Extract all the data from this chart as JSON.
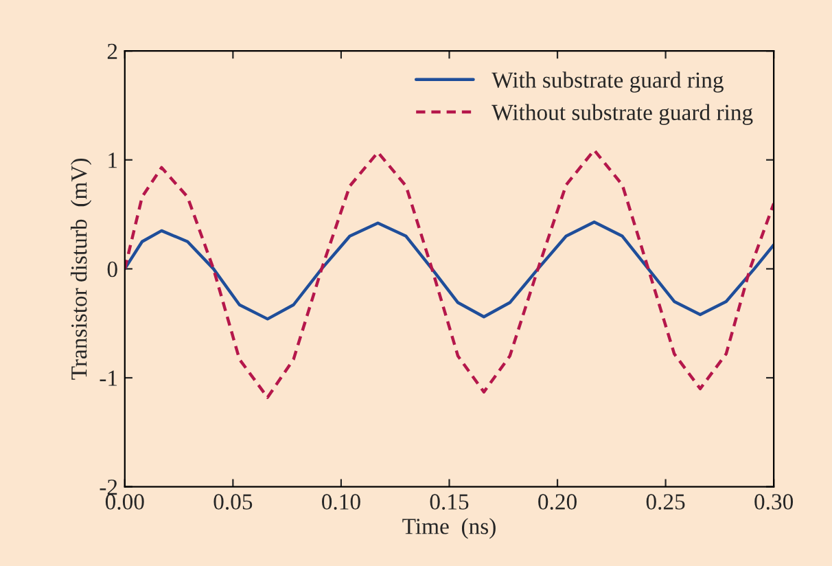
{
  "chart_data": {
    "type": "line",
    "xlabel": "Time  (ns)",
    "ylabel": "Transistor disturb  (mV)",
    "xlim": [
      0,
      0.3
    ],
    "ylim": [
      -2,
      2
    ],
    "xticks": [
      {
        "value": 0,
        "label": "0.00"
      },
      {
        "value": 0.05,
        "label": "0.05"
      },
      {
        "value": 0.1,
        "label": "0.10"
      },
      {
        "value": 0.15,
        "label": "0.15"
      },
      {
        "value": 0.2,
        "label": "0.20"
      },
      {
        "value": 0.25,
        "label": "0.25"
      },
      {
        "value": 0.3,
        "label": "0.30"
      }
    ],
    "yticks": [
      -2,
      -1,
      0,
      1,
      2
    ],
    "grid": false,
    "legend": "top right",
    "series": [
      {
        "name": "With substrate guard ring",
        "color": "#1f4e9a",
        "line_style": "solid",
        "x": [
          0,
          0.008,
          0.017,
          0.029,
          0.041,
          0.053,
          0.066,
          0.078,
          0.091,
          0.104,
          0.117,
          0.13,
          0.142,
          0.154,
          0.166,
          0.178,
          0.191,
          0.204,
          0.217,
          0.23,
          0.242,
          0.254,
          0.266,
          0.278,
          0.291,
          0.3
        ],
        "values": [
          0,
          0.25,
          0.35,
          0.25,
          0,
          -0.33,
          -0.46,
          -0.33,
          0,
          0.3,
          0.42,
          0.3,
          0,
          -0.31,
          -0.44,
          -0.31,
          0,
          0.3,
          0.43,
          0.3,
          0,
          -0.3,
          -0.42,
          -0.3,
          0,
          0.22
        ]
      },
      {
        "name": "Without substrate guard ring",
        "color": "#b5174b",
        "line_style": "dashed",
        "x": [
          0,
          0.008,
          0.017,
          0.029,
          0.041,
          0.053,
          0.066,
          0.078,
          0.091,
          0.104,
          0.117,
          0.13,
          0.142,
          0.154,
          0.166,
          0.178,
          0.191,
          0.204,
          0.217,
          0.23,
          0.242,
          0.254,
          0.266,
          0.278,
          0.289,
          0.3
        ],
        "values": [
          0,
          0.66,
          0.93,
          0.66,
          0,
          -0.83,
          -1.18,
          -0.83,
          0,
          0.76,
          1.07,
          0.76,
          0,
          -0.8,
          -1.13,
          -0.8,
          0,
          0.77,
          1.09,
          0.77,
          0,
          -0.78,
          -1.1,
          -0.78,
          0,
          0.6
        ]
      }
    ]
  }
}
